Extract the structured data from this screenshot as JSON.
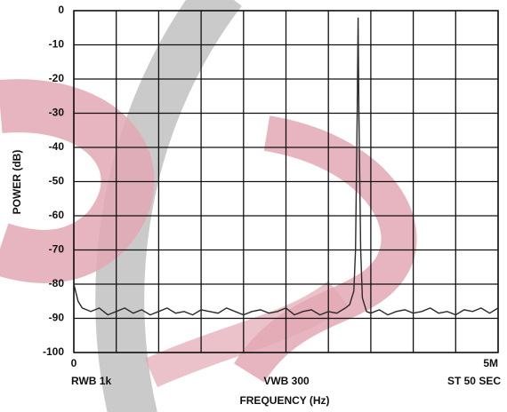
{
  "chart_data": {
    "type": "line",
    "xlabel": "FREQUENCY (Hz)",
    "ylabel": "POWER (dB)",
    "annotations": [
      "RWB 1k",
      "VWB 300",
      "ST 50 SEC"
    ],
    "xlim": [
      0,
      5000000
    ],
    "xticks": [
      0,
      {
        "value": 5000000,
        "label": "5M"
      }
    ],
    "xgrid": [
      500000,
      1000000,
      1500000,
      2000000,
      2500000,
      3000000,
      3500000,
      4000000,
      4500000
    ],
    "ylim": [
      -100,
      0
    ],
    "yticks": [
      0,
      -10,
      -20,
      -30,
      -40,
      -50,
      -60,
      -70,
      -80,
      -90,
      -100
    ],
    "grid": true,
    "x": [
      0,
      50000,
      100000,
      200000,
      300000,
      400000,
      500000,
      600000,
      700000,
      800000,
      900000,
      1000000,
      1100000,
      1200000,
      1300000,
      1400000,
      1500000,
      1600000,
      1700000,
      1800000,
      1900000,
      2000000,
      2100000,
      2200000,
      2300000,
      2400000,
      2500000,
      2600000,
      2700000,
      2800000,
      2900000,
      3000000,
      3100000,
      3200000,
      3250000,
      3300000,
      3320000,
      3340000,
      3350000,
      3360000,
      3380000,
      3400000,
      3450000,
      3500000,
      3600000,
      3700000,
      3800000,
      3900000,
      4000000,
      4100000,
      4200000,
      4300000,
      4400000,
      4500000,
      4600000,
      4700000,
      4800000,
      4900000,
      5000000
    ],
    "series": [
      {
        "color": "#2a2a2a",
        "values": [
          -80,
          -85,
          -87,
          -88,
          -87,
          -89,
          -88,
          -87,
          -88.5,
          -87.5,
          -89,
          -88,
          -87,
          -88.5,
          -88,
          -89,
          -87.5,
          -88,
          -88.5,
          -87,
          -88,
          -89,
          -88,
          -87.5,
          -88.5,
          -88,
          -87,
          -89,
          -88,
          -87.5,
          -89,
          -88,
          -88.5,
          -87,
          -86,
          -82,
          -70,
          -30,
          -2,
          -30,
          -70,
          -84,
          -88,
          -88.5,
          -87.5,
          -89,
          -88,
          -87.5,
          -88.5,
          -88,
          -87,
          -88.5,
          -88,
          -89,
          -87.5,
          -88,
          -87,
          -88.5,
          -87
        ]
      }
    ]
  }
}
